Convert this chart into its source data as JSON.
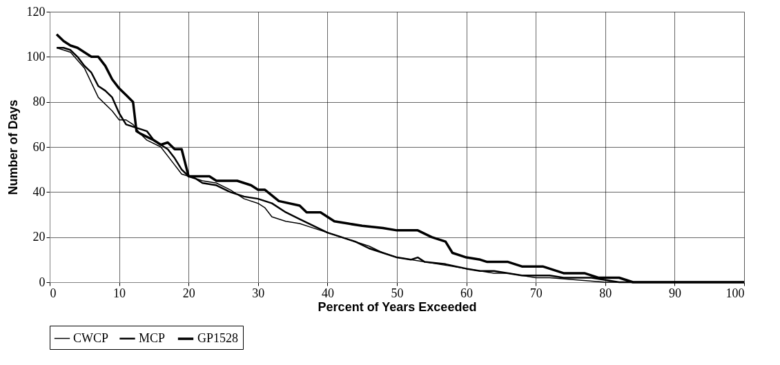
{
  "chart_data": {
    "type": "line",
    "xlabel": "Percent of Years Exceeded",
    "ylabel": "Number of Days",
    "xlim": [
      0,
      100
    ],
    "xticks": [
      0,
      10,
      20,
      30,
      40,
      50,
      60,
      70,
      80,
      90,
      100
    ],
    "ylim": [
      0,
      120
    ],
    "yticks": [
      0,
      20,
      40,
      60,
      80,
      100,
      120
    ],
    "grid": true,
    "legend": "bottom",
    "marker": "none",
    "line_style": "solid",
    "series": [
      {
        "name": "CWCP",
        "color": "#000000",
        "x": [
          1,
          3,
          5,
          7,
          9,
          10,
          11,
          12,
          13,
          14,
          16,
          18,
          19,
          20,
          22,
          24,
          26,
          28,
          30,
          31,
          32,
          34,
          36,
          38,
          40,
          42,
          44,
          46,
          48,
          50,
          52,
          54,
          56,
          58,
          60,
          62,
          64,
          66,
          68,
          70,
          72,
          76,
          80,
          100
        ],
        "values": [
          104,
          102,
          95,
          82,
          76,
          72,
          72,
          70,
          66,
          63,
          60,
          52,
          48,
          47,
          45,
          44,
          41,
          37,
          35,
          33,
          29,
          27,
          26,
          24,
          22,
          20,
          18,
          16,
          13,
          11,
          10,
          9,
          8,
          7,
          6,
          5,
          4,
          4,
          3,
          2,
          2,
          1,
          0,
          0
        ]
      },
      {
        "name": "MCP",
        "color": "#000000",
        "x": [
          1,
          2,
          3,
          4,
          5,
          6,
          7,
          8,
          9,
          10,
          11,
          12,
          13,
          14,
          15,
          16,
          17,
          18,
          19,
          20,
          21,
          22,
          24,
          26,
          28,
          30,
          32,
          34,
          36,
          38,
          40,
          42,
          44,
          46,
          48,
          50,
          52,
          53,
          54,
          57,
          60,
          62,
          64,
          66,
          68,
          70,
          72,
          74,
          78,
          80,
          82,
          100
        ],
        "values": [
          104,
          104,
          103,
          100,
          96,
          93,
          87,
          85,
          82,
          75,
          70,
          69,
          68,
          67,
          63,
          61,
          59,
          55,
          50,
          47,
          46,
          44,
          43,
          40,
          38,
          37,
          35,
          31,
          28,
          25,
          22,
          20,
          18,
          15,
          13,
          11,
          10,
          11,
          9,
          8,
          6,
          5,
          5,
          4,
          3,
          3,
          3,
          2,
          2,
          1,
          0,
          0
        ]
      },
      {
        "name": "GP1528",
        "color": "#000000",
        "x": [
          1,
          2,
          3,
          4,
          5,
          6,
          7,
          8,
          9,
          10,
          11,
          12,
          12.5,
          13,
          15,
          16,
          17,
          18,
          19,
          20,
          22,
          23,
          24,
          27,
          29,
          30,
          31,
          33,
          36,
          37,
          39,
          40,
          41,
          43,
          45,
          48,
          50,
          53,
          55,
          57,
          58,
          60,
          62,
          63,
          66,
          68,
          70,
          71,
          73,
          74,
          77,
          78,
          79,
          80,
          82,
          83,
          84,
          100
        ],
        "values": [
          110,
          107,
          105,
          104,
          102,
          100,
          100,
          96,
          90,
          86,
          83,
          80,
          67,
          66,
          63,
          61,
          62,
          59,
          59,
          47,
          47,
          47,
          45,
          45,
          43,
          41,
          41,
          36,
          34,
          31,
          31,
          29,
          27,
          26,
          25,
          24,
          23,
          23,
          20,
          18,
          13,
          11,
          10,
          9,
          9,
          7,
          7,
          7,
          5,
          4,
          4,
          3,
          2,
          2,
          2,
          1,
          0,
          0
        ]
      }
    ]
  }
}
